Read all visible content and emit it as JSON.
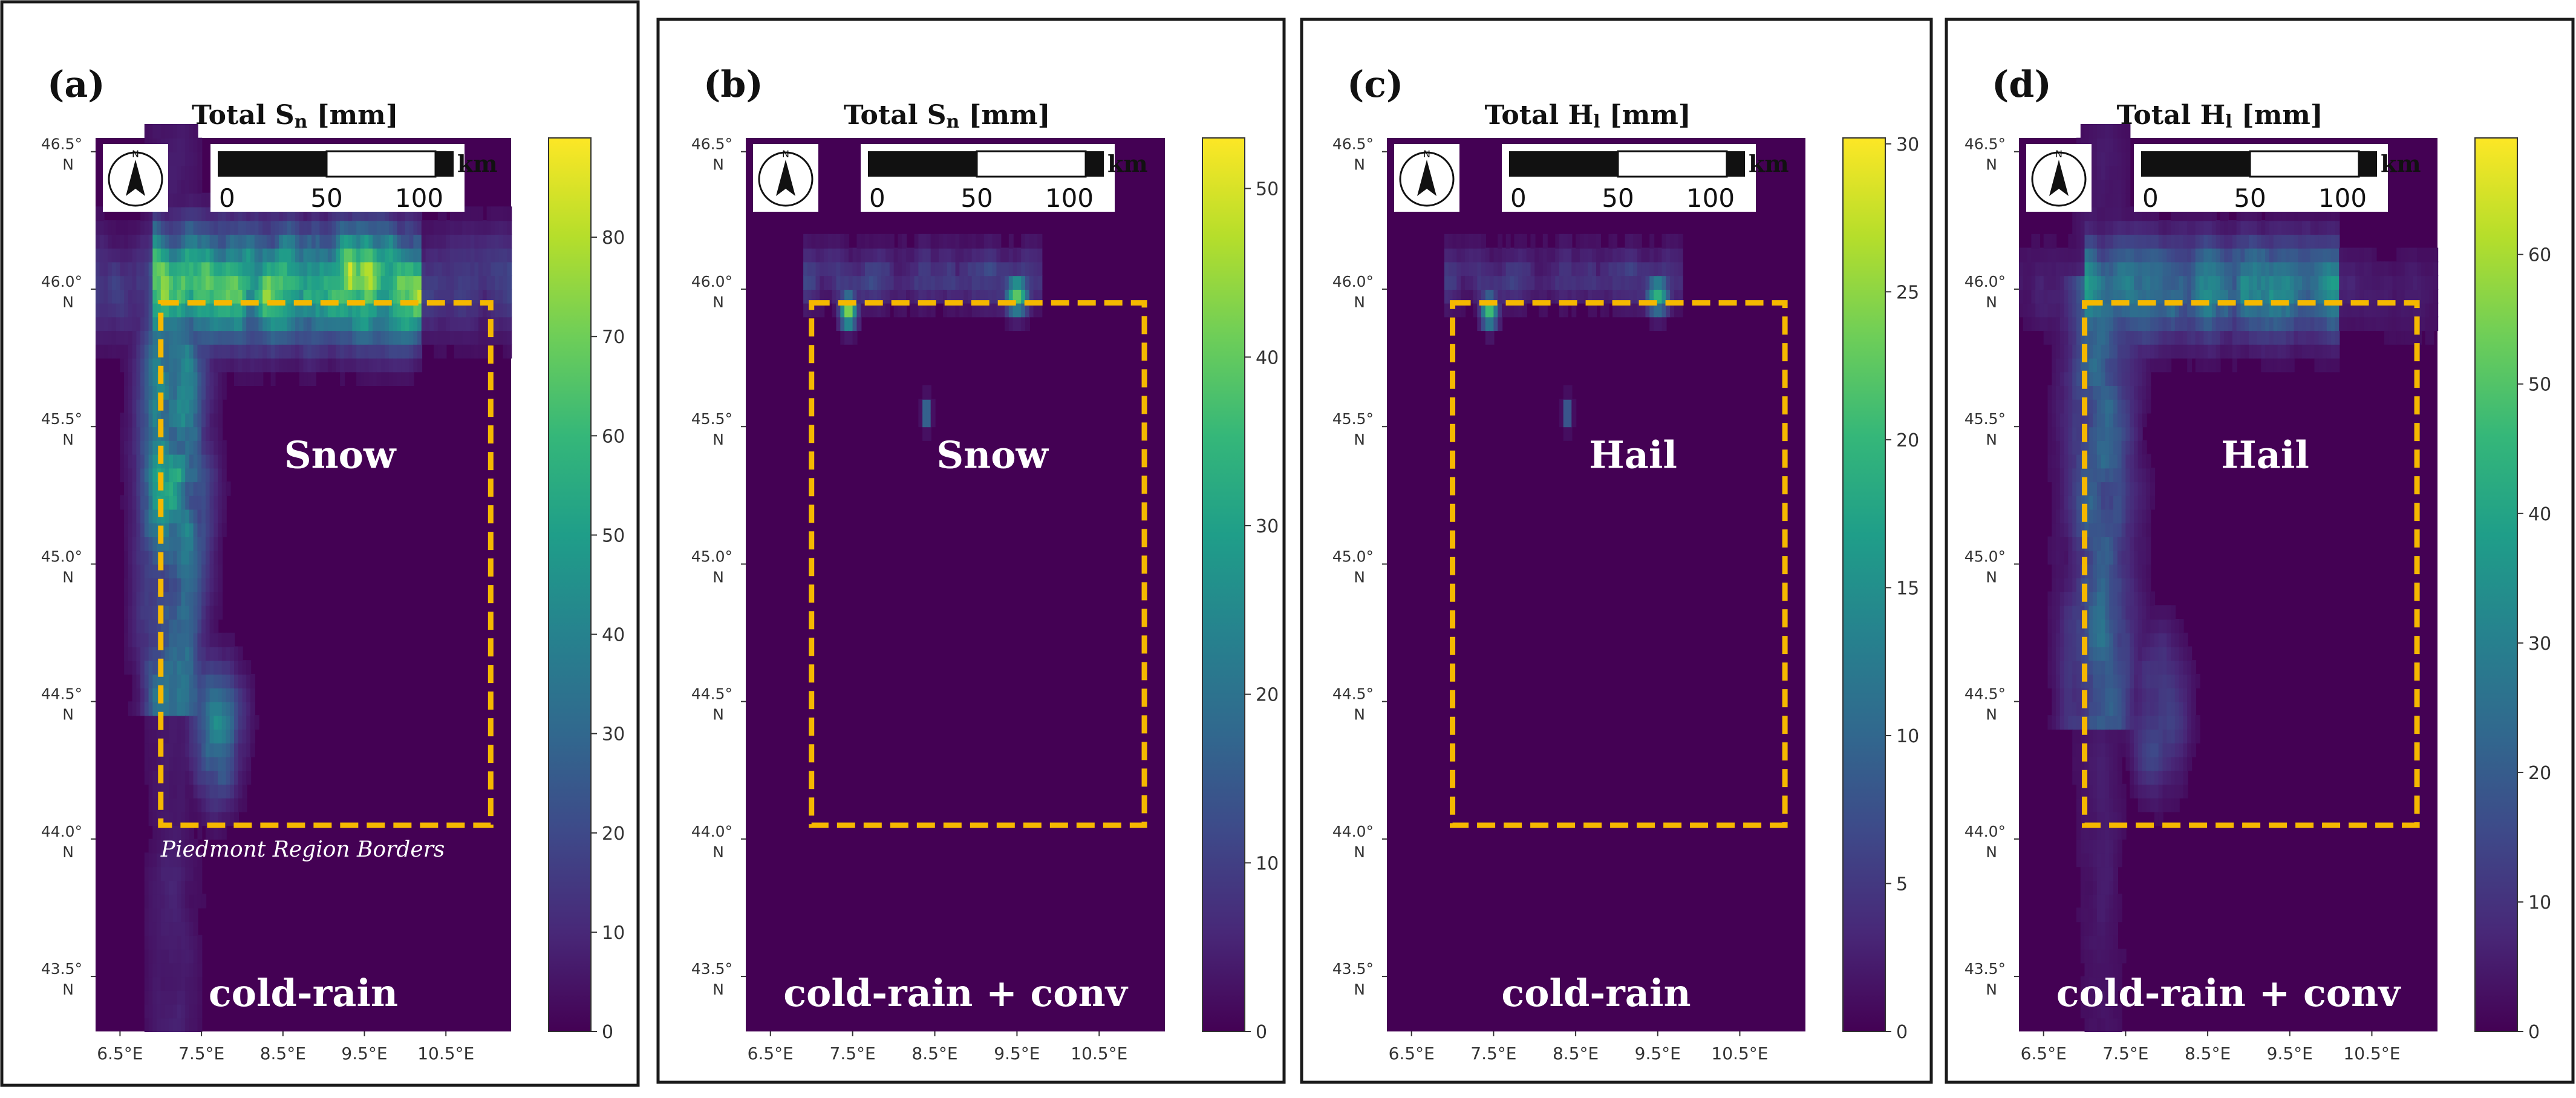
{
  "colors": {
    "viridis": [
      "#440154",
      "#482878",
      "#3e4989",
      "#31688e",
      "#26828e",
      "#1f9e89",
      "#35b779",
      "#6ece58",
      "#b5de2b",
      "#fde725"
    ],
    "region_box": "#f5b800",
    "frame": "#1a1a1a"
  },
  "scale_bar": {
    "ticks": [
      "0",
      "50",
      "100"
    ],
    "unit": "km"
  },
  "compass": {
    "letter": "N"
  },
  "chart_data": [
    {
      "type": "heatmap",
      "panel_label": "(a)",
      "title_main": "Total S",
      "title_sub": "n",
      "title_unit": " [mm]",
      "overlay_label": "Snow",
      "scenario_label": "cold-rain",
      "region_note": "Piedmont Region Borders",
      "colorbar": {
        "min": 0,
        "max": 90,
        "ticks": [
          0,
          10,
          20,
          30,
          40,
          50,
          60,
          70,
          80
        ]
      },
      "xlim": [
        6.2,
        11.3
      ],
      "ylim": [
        43.3,
        46.55
      ],
      "xticks": [
        "6.5°E",
        "7.5°E",
        "8.5°E",
        "9.5°E",
        "10.5°E"
      ],
      "xtick_values": [
        6.5,
        7.5,
        8.5,
        9.5,
        10.5
      ],
      "yticks": [
        {
          "value": 46.5,
          "label": "46.5°"
        },
        {
          "value": 46.0,
          "label": "46.0°"
        },
        {
          "value": 45.5,
          "label": "45.5°"
        },
        {
          "value": 45.0,
          "label": "45.0°"
        },
        {
          "value": 44.5,
          "label": "44.5°"
        },
        {
          "value": 44.0,
          "label": "44.0°"
        },
        {
          "value": 43.5,
          "label": "43.5°"
        }
      ],
      "ytick_hemisphere": "N",
      "region_box_bounds": {
        "lon": [
          7.0,
          11.05
        ],
        "lat": [
          44.05,
          45.95
        ]
      },
      "field": "snow_wide",
      "field_peak": 85
    },
    {
      "type": "heatmap",
      "panel_label": "(b)",
      "title_main": "Total S",
      "title_sub": "n",
      "title_unit": " [mm]",
      "overlay_label": "Snow",
      "scenario_label": "cold-rain + conv",
      "colorbar": {
        "min": 0,
        "max": 53,
        "ticks": [
          0,
          10,
          20,
          30,
          40,
          50
        ]
      },
      "xlim": [
        6.2,
        11.3
      ],
      "ylim": [
        43.3,
        46.55
      ],
      "xticks": [
        "6.5°E",
        "7.5°E",
        "8.5°E",
        "9.5°E",
        "10.5°E"
      ],
      "xtick_values": [
        6.5,
        7.5,
        8.5,
        9.5,
        10.5
      ],
      "yticks": [
        {
          "value": 46.5,
          "label": "46.5°"
        },
        {
          "value": 46.0,
          "label": "46.0°"
        },
        {
          "value": 45.5,
          "label": "45.5°"
        },
        {
          "value": 45.0,
          "label": "45.0°"
        },
        {
          "value": 44.5,
          "label": "44.5°"
        },
        {
          "value": 44.0,
          "label": "44.0°"
        },
        {
          "value": 43.5,
          "label": "43.5°"
        }
      ],
      "ytick_hemisphere": "N",
      "region_box_bounds": {
        "lon": [
          7.0,
          11.05
        ],
        "lat": [
          44.05,
          45.95
        ]
      },
      "field": "sparse",
      "field_peak": 45
    },
    {
      "type": "heatmap",
      "panel_label": "(c)",
      "title_main": "Total H",
      "title_sub": "l",
      "title_unit": " [mm]",
      "overlay_label": "Hail",
      "scenario_label": "cold-rain",
      "colorbar": {
        "min": 0,
        "max": 30.2,
        "ticks": [
          0,
          5,
          10,
          15,
          20,
          25,
          30
        ]
      },
      "xlim": [
        6.2,
        11.3
      ],
      "ylim": [
        43.3,
        46.55
      ],
      "xticks": [
        "6.5°E",
        "7.5°E",
        "8.5°E",
        "9.5°E",
        "10.5°E"
      ],
      "xtick_values": [
        6.5,
        7.5,
        8.5,
        9.5,
        10.5
      ],
      "yticks": [
        {
          "value": 46.5,
          "label": "46.5°"
        },
        {
          "value": 46.0,
          "label": "46.0°"
        },
        {
          "value": 45.5,
          "label": "45.5°"
        },
        {
          "value": 45.0,
          "label": "45.0°"
        },
        {
          "value": 44.5,
          "label": "44.5°"
        },
        {
          "value": 44.0,
          "label": "44.0°"
        },
        {
          "value": 43.5,
          "label": "43.5°"
        }
      ],
      "ytick_hemisphere": "N",
      "region_box_bounds": {
        "lon": [
          7.0,
          11.05
        ],
        "lat": [
          44.05,
          45.95
        ]
      },
      "field": "sparse",
      "field_peak": 22
    },
    {
      "type": "heatmap",
      "panel_label": "(d)",
      "title_main": "Total H",
      "title_sub": "l",
      "title_unit": " [mm]",
      "overlay_label": "Hail",
      "scenario_label": "cold-rain + conv",
      "colorbar": {
        "min": 0,
        "max": 69,
        "ticks": [
          0,
          10,
          20,
          30,
          40,
          50,
          60
        ]
      },
      "xlim": [
        6.2,
        11.3
      ],
      "ylim": [
        43.3,
        46.55
      ],
      "xticks": [
        "6.5°E",
        "7.5°E",
        "8.5°E",
        "9.5°E",
        "10.5°E"
      ],
      "xtick_values": [
        6.5,
        7.5,
        8.5,
        9.5,
        10.5
      ],
      "yticks": [
        {
          "value": 46.5,
          "label": "46.5°"
        },
        {
          "value": 46.0,
          "label": "46.0°"
        },
        {
          "value": 45.5,
          "label": "45.5°"
        },
        {
          "value": 45.0,
          "label": "45.0°"
        },
        {
          "value": 44.5,
          "label": "44.5°"
        },
        {
          "value": 44.0,
          "label": "44.0°"
        },
        {
          "value": 43.5,
          "label": "43.5°"
        }
      ],
      "ytick_hemisphere": "N",
      "region_box_bounds": {
        "lon": [
          7.0,
          11.05
        ],
        "lat": [
          44.05,
          45.95
        ]
      },
      "field": "hail_wide",
      "field_peak": 48
    }
  ]
}
